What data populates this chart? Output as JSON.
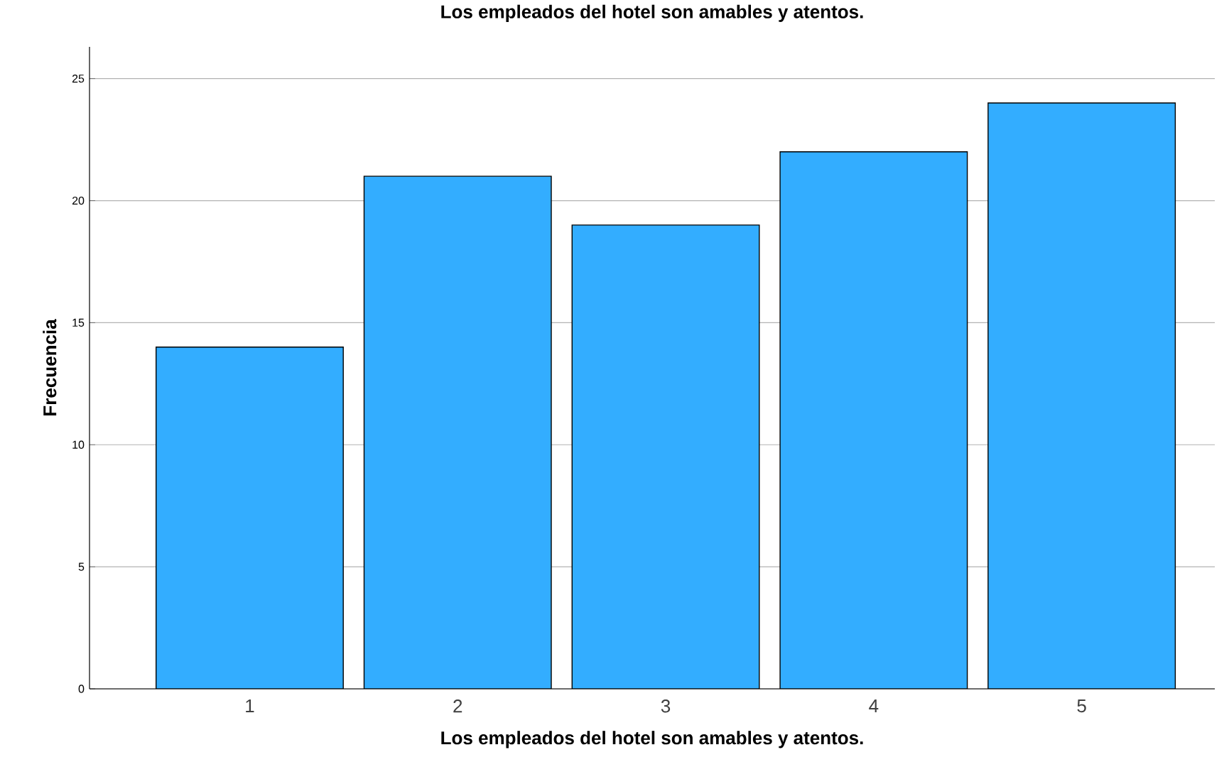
{
  "chart_data": {
    "type": "bar",
    "title": "Los empleados del hotel son amables y atentos.",
    "xlabel": "Los empleados del hotel son amables y atentos.",
    "ylabel": "Frecuencia",
    "categories": [
      "1",
      "2",
      "3",
      "4",
      "5"
    ],
    "values": [
      14,
      21,
      19,
      22,
      24
    ],
    "color": "#33adff",
    "ylim": [
      0,
      26.3
    ],
    "yticks": [
      0,
      5,
      10,
      15,
      20,
      25
    ],
    "grid": "y"
  }
}
